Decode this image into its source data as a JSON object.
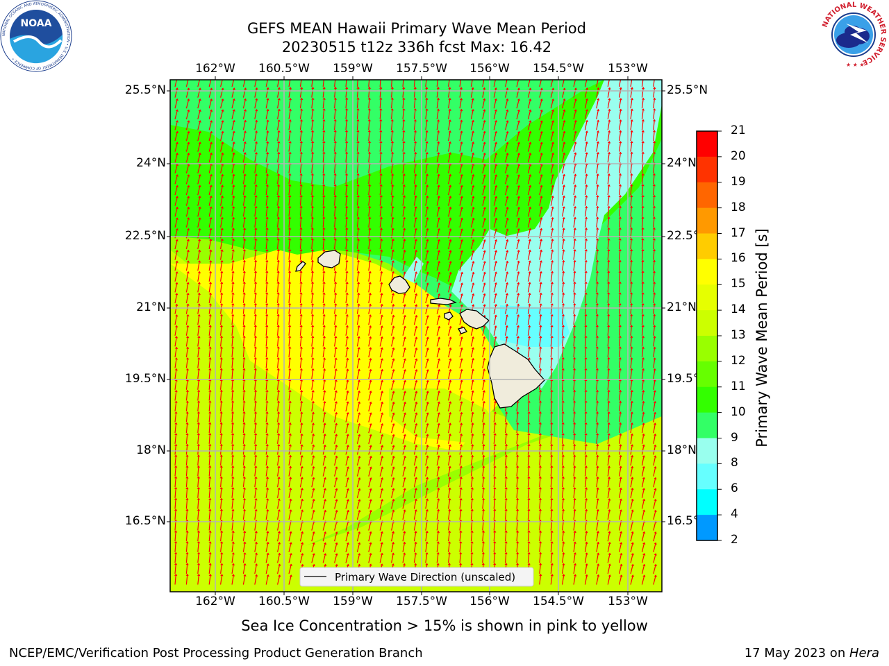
{
  "title": {
    "line1": "GEFS MEAN Hawaii Primary Wave Mean Period",
    "line2": "20230515 t12z 336h fcst   Max: 16.42"
  },
  "map": {
    "lon_ticks": [
      "162°W",
      "160.5°W",
      "159°W",
      "157.5°W",
      "156°W",
      "154.5°W",
      "153°W"
    ],
    "lat_ticks": [
      "25.5°N",
      "24°N",
      "22.5°N",
      "21°N",
      "19.5°N",
      "18°N",
      "16.5°N"
    ],
    "legend_label": "Primary Wave Direction (unscaled)",
    "arrow_color": "#ff0000",
    "land_color": "#f0ecdc"
  },
  "colorbar": {
    "label": "Primary Wave Mean Period [s]",
    "ticks": [
      "21",
      "20",
      "19",
      "18",
      "17",
      "16",
      "15",
      "14",
      "13",
      "12",
      "11",
      "10",
      "9",
      "8",
      "6",
      "4",
      "2"
    ],
    "colors": [
      "#ff0000",
      "#ff3300",
      "#ff6600",
      "#ff9900",
      "#ffcc00",
      "#ffff00",
      "#e6ff00",
      "#ccff00",
      "#99ff00",
      "#66ff00",
      "#33ff00",
      "#33ff66",
      "#99ffee",
      "#66ffff",
      "#00ffff",
      "#0099ff",
      "#0000ff"
    ]
  },
  "caption": "Sea Ice Concentration > 15% is shown in pink to yellow",
  "footer": {
    "left": "NCEP/EMC/Verification Post Processing Product Generation Branch",
    "right_date": "17 May 2023 on ",
    "right_host": "Hera"
  },
  "logos": {
    "noaa": "NOAA",
    "noaa_ring": "NATIONAL OCEANIC AND ATMOSPHERIC ADMINISTRATION • U.S. DEPARTMENT OF COMMERCE •",
    "nws_ring": "NATIONAL WEATHER SERVICE"
  }
}
